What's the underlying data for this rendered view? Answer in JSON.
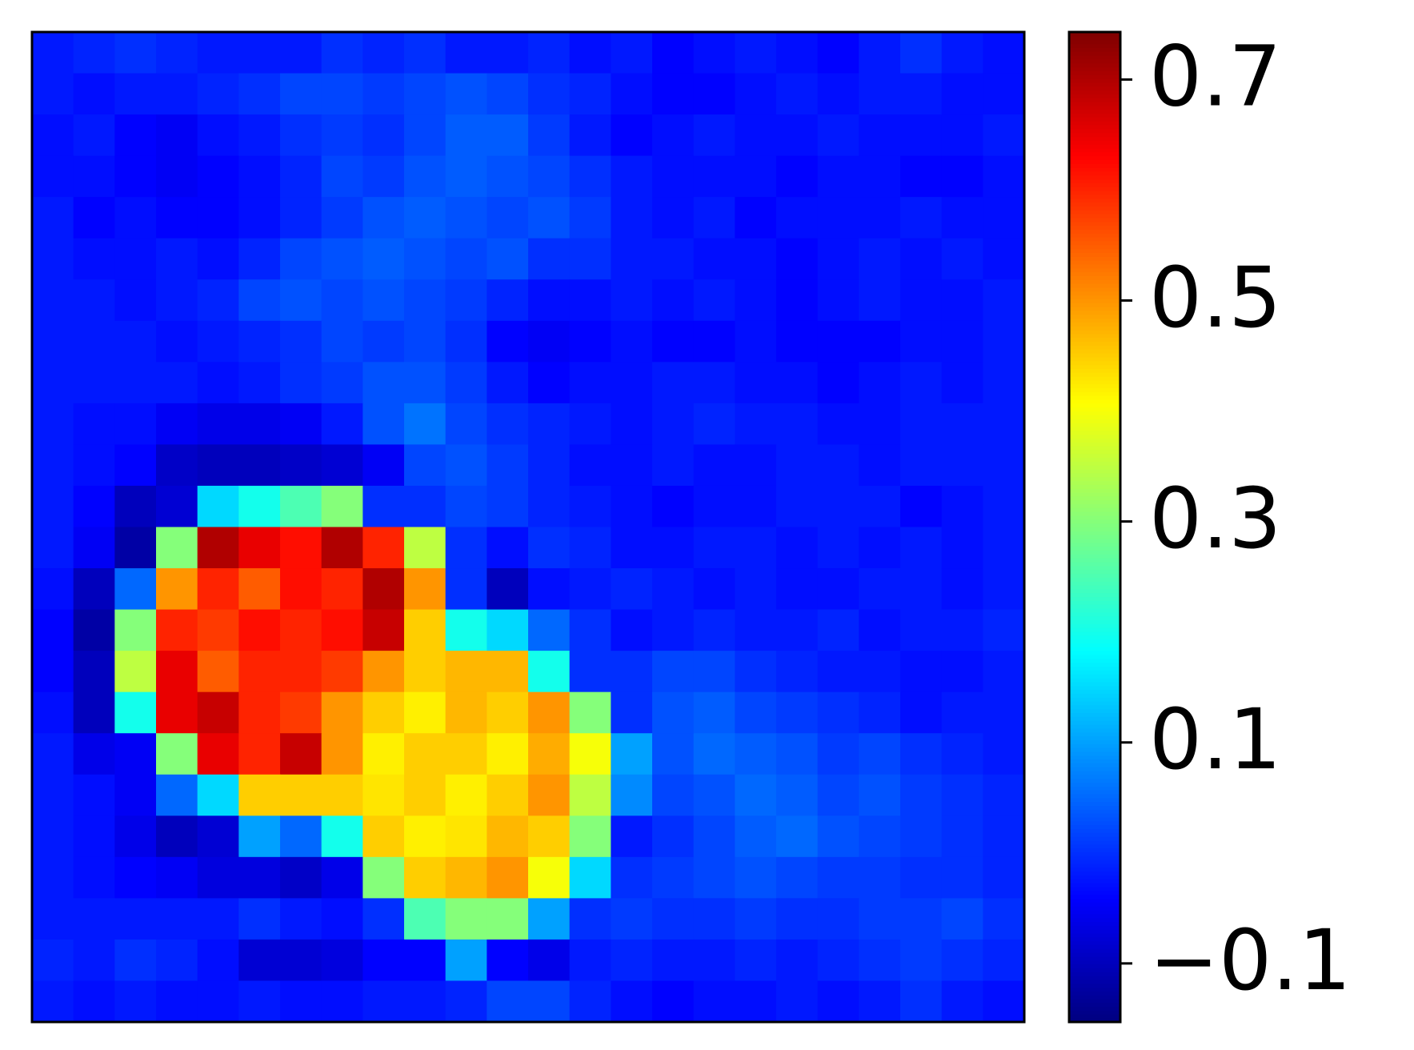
{
  "chart_data": {
    "type": "heatmap",
    "colormap": "jet",
    "clim": [
      -0.153,
      0.743
    ],
    "cticks": [
      {
        "value": -0.1,
        "label": "−0.1"
      },
      0.1,
      0.3,
      0.5,
      0.7
    ],
    "z": [
      [
        -0.02,
        -0.01,
        0.0,
        -0.01,
        -0.02,
        -0.02,
        -0.02,
        0.0,
        -0.01,
        0.0,
        -0.02,
        -0.02,
        -0.01,
        -0.03,
        -0.02,
        -0.04,
        -0.03,
        -0.02,
        -0.03,
        -0.04,
        -0.02,
        0.0,
        -0.02,
        -0.03
      ],
      [
        -0.02,
        -0.03,
        -0.02,
        -0.02,
        -0.01,
        0.0,
        0.02,
        0.02,
        0.01,
        0.02,
        0.03,
        0.02,
        0.0,
        -0.01,
        -0.03,
        -0.04,
        -0.04,
        -0.03,
        -0.02,
        -0.03,
        -0.02,
        -0.02,
        -0.03,
        -0.03
      ],
      [
        -0.03,
        -0.02,
        -0.04,
        -0.05,
        -0.03,
        -0.02,
        0.0,
        0.01,
        0.0,
        0.02,
        0.04,
        0.04,
        0.01,
        -0.02,
        -0.04,
        -0.03,
        -0.02,
        -0.03,
        -0.03,
        -0.02,
        -0.03,
        -0.03,
        -0.03,
        -0.02
      ],
      [
        -0.03,
        -0.03,
        -0.04,
        -0.05,
        -0.04,
        -0.03,
        -0.01,
        0.02,
        0.01,
        0.03,
        0.04,
        0.03,
        0.02,
        0.0,
        -0.02,
        -0.03,
        -0.03,
        -0.03,
        -0.04,
        -0.03,
        -0.03,
        -0.04,
        -0.04,
        -0.03
      ],
      [
        -0.02,
        -0.04,
        -0.03,
        -0.04,
        -0.04,
        -0.03,
        -0.01,
        0.01,
        0.03,
        0.04,
        0.03,
        0.02,
        0.03,
        0.01,
        -0.02,
        -0.03,
        -0.02,
        -0.04,
        -0.03,
        -0.03,
        -0.03,
        -0.02,
        -0.03,
        -0.03
      ],
      [
        -0.02,
        -0.03,
        -0.03,
        -0.02,
        -0.03,
        -0.01,
        0.02,
        0.03,
        0.04,
        0.03,
        0.02,
        0.03,
        0.0,
        0.0,
        -0.02,
        -0.02,
        -0.03,
        -0.03,
        -0.04,
        -0.03,
        -0.02,
        -0.03,
        -0.02,
        -0.03
      ],
      [
        -0.02,
        -0.02,
        -0.03,
        -0.02,
        -0.01,
        0.02,
        0.03,
        0.02,
        0.03,
        0.02,
        0.01,
        -0.01,
        -0.03,
        -0.03,
        -0.02,
        -0.03,
        -0.02,
        -0.03,
        -0.04,
        -0.03,
        -0.02,
        -0.03,
        -0.03,
        -0.02
      ],
      [
        -0.02,
        -0.02,
        -0.02,
        -0.03,
        -0.02,
        -0.01,
        0.0,
        0.02,
        0.01,
        0.02,
        0.0,
        -0.04,
        -0.05,
        -0.04,
        -0.03,
        -0.04,
        -0.04,
        -0.03,
        -0.04,
        -0.04,
        -0.04,
        -0.03,
        -0.03,
        -0.02
      ],
      [
        -0.02,
        -0.02,
        -0.02,
        -0.02,
        -0.03,
        -0.02,
        0.0,
        0.01,
        0.03,
        0.03,
        0.01,
        -0.02,
        -0.04,
        -0.03,
        -0.03,
        -0.02,
        -0.02,
        -0.03,
        -0.03,
        -0.04,
        -0.03,
        -0.02,
        -0.03,
        -0.02
      ],
      [
        -0.02,
        -0.03,
        -0.03,
        -0.05,
        -0.06,
        -0.06,
        -0.05,
        -0.02,
        0.03,
        0.06,
        0.02,
        0.0,
        -0.01,
        -0.02,
        -0.03,
        -0.02,
        -0.01,
        -0.02,
        -0.02,
        -0.03,
        -0.03,
        -0.02,
        -0.02,
        -0.02
      ],
      [
        -0.02,
        -0.03,
        -0.04,
        -0.09,
        -0.1,
        -0.1,
        -0.09,
        -0.08,
        -0.05,
        0.02,
        0.03,
        0.01,
        -0.01,
        -0.03,
        -0.03,
        -0.02,
        -0.03,
        -0.03,
        -0.02,
        -0.02,
        -0.03,
        -0.02,
        -0.02,
        -0.02
      ],
      [
        -0.02,
        -0.04,
        -0.1,
        -0.08,
        0.15,
        0.2,
        0.25,
        0.3,
        0.0,
        0.0,
        0.02,
        0.01,
        -0.01,
        -0.02,
        -0.03,
        -0.04,
        -0.03,
        -0.03,
        -0.02,
        -0.02,
        -0.02,
        -0.04,
        -0.03,
        -0.02
      ],
      [
        -0.02,
        -0.05,
        -0.12,
        0.3,
        0.7,
        0.65,
        0.62,
        0.7,
        0.6,
        0.35,
        0.0,
        -0.03,
        0.0,
        -0.01,
        -0.03,
        -0.03,
        -0.02,
        -0.02,
        -0.03,
        -0.02,
        -0.03,
        -0.02,
        -0.03,
        -0.02
      ],
      [
        -0.03,
        -0.1,
        0.05,
        0.5,
        0.6,
        0.55,
        0.62,
        0.6,
        0.7,
        0.5,
        0.0,
        -0.1,
        -0.03,
        -0.02,
        -0.01,
        -0.02,
        -0.03,
        -0.02,
        -0.03,
        -0.03,
        -0.02,
        -0.02,
        -0.03,
        -0.02
      ],
      [
        -0.04,
        -0.12,
        0.3,
        0.6,
        0.58,
        0.62,
        0.6,
        0.62,
        0.68,
        0.45,
        0.2,
        0.15,
        0.05,
        0.0,
        -0.03,
        -0.02,
        -0.01,
        -0.02,
        -0.02,
        -0.01,
        -0.03,
        -0.02,
        -0.02,
        -0.01
      ],
      [
        -0.04,
        -0.1,
        0.35,
        0.65,
        0.55,
        0.6,
        0.6,
        0.58,
        0.5,
        0.45,
        0.47,
        0.47,
        0.2,
        0.0,
        0.0,
        0.02,
        0.02,
        0.0,
        -0.01,
        -0.02,
        -0.02,
        -0.03,
        -0.03,
        -0.02
      ],
      [
        -0.03,
        -0.1,
        0.2,
        0.65,
        0.68,
        0.6,
        0.58,
        0.5,
        0.45,
        0.42,
        0.47,
        0.45,
        0.5,
        0.3,
        0.0,
        0.03,
        0.04,
        0.02,
        0.01,
        0.0,
        -0.01,
        -0.03,
        -0.02,
        -0.02
      ],
      [
        -0.02,
        -0.06,
        -0.05,
        0.3,
        0.65,
        0.6,
        0.68,
        0.5,
        0.42,
        0.45,
        0.45,
        0.42,
        0.48,
        0.4,
        0.1,
        0.03,
        0.05,
        0.04,
        0.03,
        0.01,
        0.02,
        0.0,
        -0.01,
        -0.02
      ],
      [
        -0.02,
        -0.03,
        -0.05,
        0.05,
        0.15,
        0.45,
        0.45,
        0.45,
        0.43,
        0.45,
        0.42,
        0.45,
        0.5,
        0.35,
        0.08,
        0.02,
        0.03,
        0.05,
        0.04,
        0.02,
        0.03,
        0.01,
        0.0,
        -0.01
      ],
      [
        -0.02,
        -0.03,
        -0.06,
        -0.1,
        -0.08,
        0.1,
        0.05,
        0.2,
        0.45,
        0.42,
        0.43,
        0.47,
        0.45,
        0.3,
        -0.02,
        0.0,
        0.02,
        0.04,
        0.05,
        0.03,
        0.02,
        0.01,
        0.0,
        -0.01
      ],
      [
        -0.02,
        -0.03,
        -0.04,
        -0.05,
        -0.07,
        -0.07,
        -0.09,
        -0.06,
        0.3,
        0.45,
        0.47,
        0.5,
        0.4,
        0.15,
        0.0,
        0.01,
        0.02,
        0.03,
        0.02,
        0.01,
        0.01,
        0.0,
        0.0,
        -0.01
      ],
      [
        -0.02,
        -0.02,
        -0.02,
        -0.02,
        -0.02,
        0.0,
        -0.02,
        -0.03,
        0.0,
        0.25,
        0.3,
        0.3,
        0.1,
        0.0,
        0.01,
        0.0,
        0.0,
        0.01,
        0.0,
        0.0,
        0.01,
        0.01,
        0.02,
        0.0
      ],
      [
        -0.01,
        -0.02,
        0.0,
        -0.01,
        -0.03,
        -0.08,
        -0.08,
        -0.07,
        -0.04,
        -0.04,
        0.1,
        -0.04,
        -0.06,
        -0.02,
        -0.01,
        -0.02,
        -0.02,
        -0.01,
        -0.02,
        -0.01,
        0.0,
        0.01,
        0.0,
        -0.01
      ],
      [
        -0.02,
        -0.03,
        -0.02,
        -0.03,
        -0.03,
        -0.02,
        -0.03,
        -0.03,
        -0.02,
        -0.02,
        -0.01,
        0.02,
        0.02,
        -0.01,
        -0.03,
        -0.04,
        -0.03,
        -0.03,
        -0.02,
        -0.03,
        -0.02,
        0.0,
        -0.02,
        -0.03
      ]
    ]
  }
}
